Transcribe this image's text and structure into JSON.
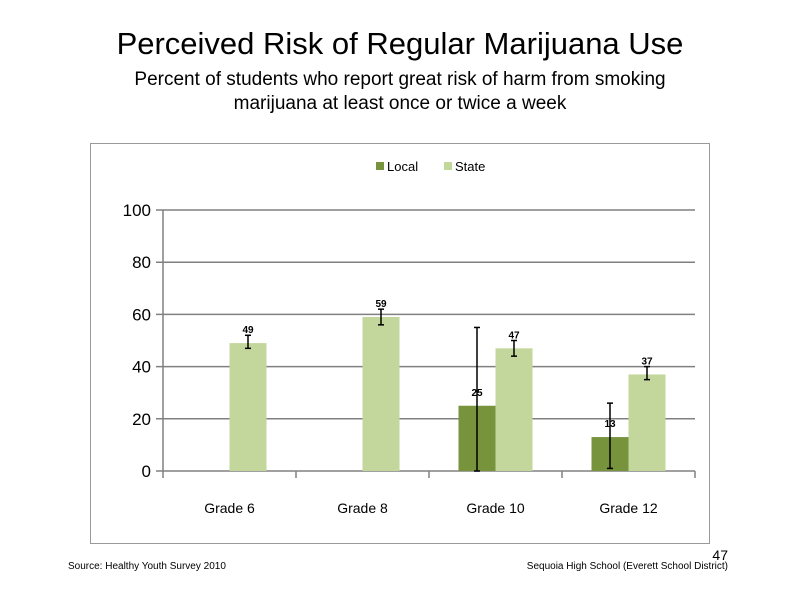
{
  "title": "Perceived  Risk of Regular  Marijuana  Use",
  "subtitle": "Percent of students  who report great risk of harm  from smoking marijuana  at least once or twice a week",
  "footer": {
    "source": "Source: Healthy  Youth Survey 2010",
    "school": "Sequoia High  School  (Everett School District)",
    "page_number": "47"
  },
  "colors": {
    "local": "#77933c",
    "state": "#c3d69b",
    "grid": "#808080"
  },
  "chart_data": {
    "type": "bar",
    "categories": [
      "Grade 6",
      "Grade 8",
      "Grade 10",
      "Grade 12"
    ],
    "series": [
      {
        "name": "Local",
        "values": [
          null,
          null,
          25,
          13
        ],
        "data_labels": [
          "",
          "",
          "25",
          "13"
        ],
        "error_low": [
          null,
          null,
          0,
          1
        ],
        "error_high": [
          null,
          null,
          55,
          26
        ]
      },
      {
        "name": "State",
        "values": [
          49,
          59,
          47,
          37
        ],
        "data_labels": [
          "49",
          "59",
          "47",
          "37"
        ],
        "error_low": [
          47,
          56,
          44,
          35
        ],
        "error_high": [
          52,
          62,
          50,
          40
        ]
      }
    ],
    "ylim": [
      0,
      100
    ],
    "yticks": [
      0,
      20,
      40,
      60,
      80,
      100
    ],
    "legend_position": "top",
    "grid": true
  }
}
